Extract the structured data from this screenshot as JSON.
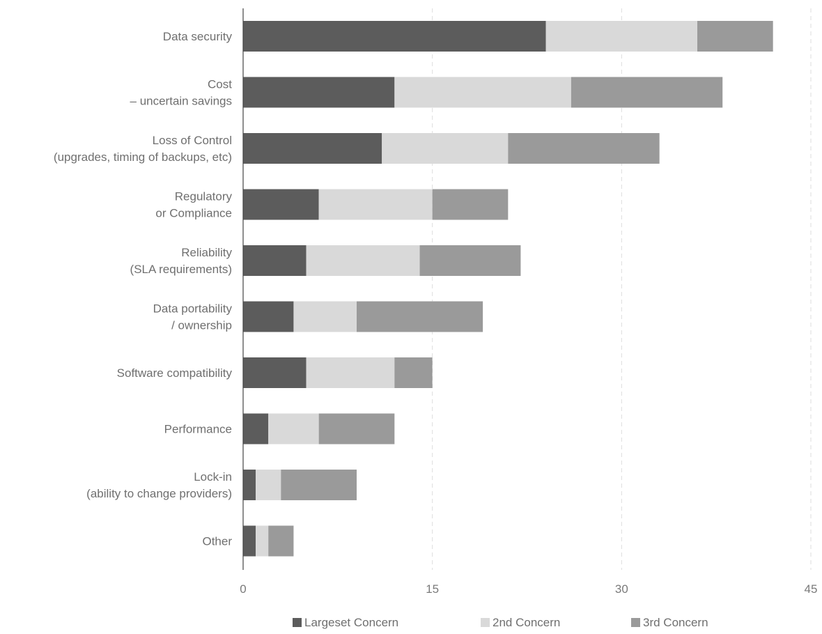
{
  "chart_data": {
    "type": "bar",
    "orientation": "horizontal",
    "stacked": true,
    "categories": [
      [
        "Data security"
      ],
      [
        "Cost",
        "– uncertain savings"
      ],
      [
        "Loss of Control",
        "(upgrades, timing of backups, etc)"
      ],
      [
        "Regulatory",
        "or Compliance"
      ],
      [
        "Reliability",
        "(SLA requirements)"
      ],
      [
        "Data portability",
        "/ ownership"
      ],
      [
        "Software compatibility"
      ],
      [
        "Performance"
      ],
      [
        "Lock-in",
        "(ability to change providers)"
      ],
      [
        "Other"
      ]
    ],
    "series": [
      {
        "name": "Largeset Concern",
        "color": "#5c5c5c",
        "values": [
          24,
          12,
          11,
          6,
          5,
          4,
          5,
          2,
          1,
          1
        ]
      },
      {
        "name": "2nd Concern",
        "color": "#d9d9d9",
        "values": [
          12,
          14,
          10,
          9,
          9,
          5,
          7,
          4,
          2,
          1
        ]
      },
      {
        "name": "3rd Concern",
        "color": "#9a9a9a",
        "values": [
          6,
          12,
          12,
          6,
          8,
          10,
          3,
          6,
          6,
          2
        ]
      }
    ],
    "xlim": [
      0,
      45
    ],
    "xticks": [
      0,
      15,
      30,
      45
    ],
    "grid": true,
    "legend_position": "bottom"
  }
}
